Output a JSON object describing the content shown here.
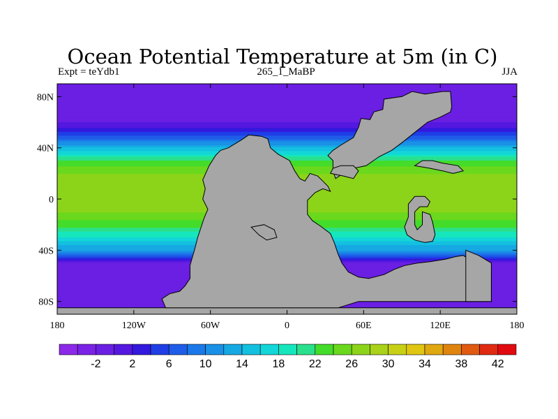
{
  "chart_data": {
    "type": "heatmap",
    "title": "Ocean Potential Temperature at 5m (in C)",
    "subtitle_left": "Expt = teYdb1",
    "subtitle_center": "265_1_MaBP",
    "subtitle_right": "JJA",
    "x_ticks": [
      "180",
      "120W",
      "60W",
      "0",
      "60E",
      "120E",
      "180"
    ],
    "y_ticks": [
      "80N",
      "40N",
      "0",
      "40S",
      "80S"
    ],
    "lon_range": [
      -180,
      180
    ],
    "lat_range": [
      -90,
      90
    ],
    "colorbar": {
      "levels": [
        -4,
        -2,
        0,
        2,
        4,
        6,
        8,
        10,
        12,
        14,
        16,
        18,
        20,
        22,
        24,
        26,
        28,
        30,
        32,
        34,
        36,
        38,
        40,
        42
      ],
      "labels": [
        "-2",
        "2",
        "6",
        "10",
        "14",
        "18",
        "22",
        "26",
        "30",
        "34",
        "38",
        "42"
      ],
      "colors": [
        "#8c29e8",
        "#7a22e6",
        "#6a1fe3",
        "#5418e0",
        "#3318dd",
        "#1f3ee6",
        "#1f5ce8",
        "#1a78e8",
        "#1a90e6",
        "#16a8e3",
        "#14c0e0",
        "#12d6d8",
        "#16e6bc",
        "#2ae08c",
        "#44dc2a",
        "#6ad81c",
        "#8cd41a",
        "#aad21a",
        "#c8d016",
        "#e0c612",
        "#e0a810",
        "#e08410",
        "#e05a12",
        "#e02a12",
        "#e00a10"
      ]
    },
    "zonal_profile": {
      "lat": [
        90,
        75,
        60,
        50,
        45,
        40,
        30,
        20,
        10,
        0,
        -10,
        -20,
        -30,
        -40,
        -45,
        -50,
        -60,
        -75,
        -90
      ],
      "temp": [
        -2,
        -1,
        0,
        5,
        10,
        14,
        22,
        26,
        26,
        27,
        26,
        23,
        18,
        12,
        6,
        0,
        -1,
        -2,
        -2
      ]
    },
    "land_color": "#a6a6a6"
  }
}
